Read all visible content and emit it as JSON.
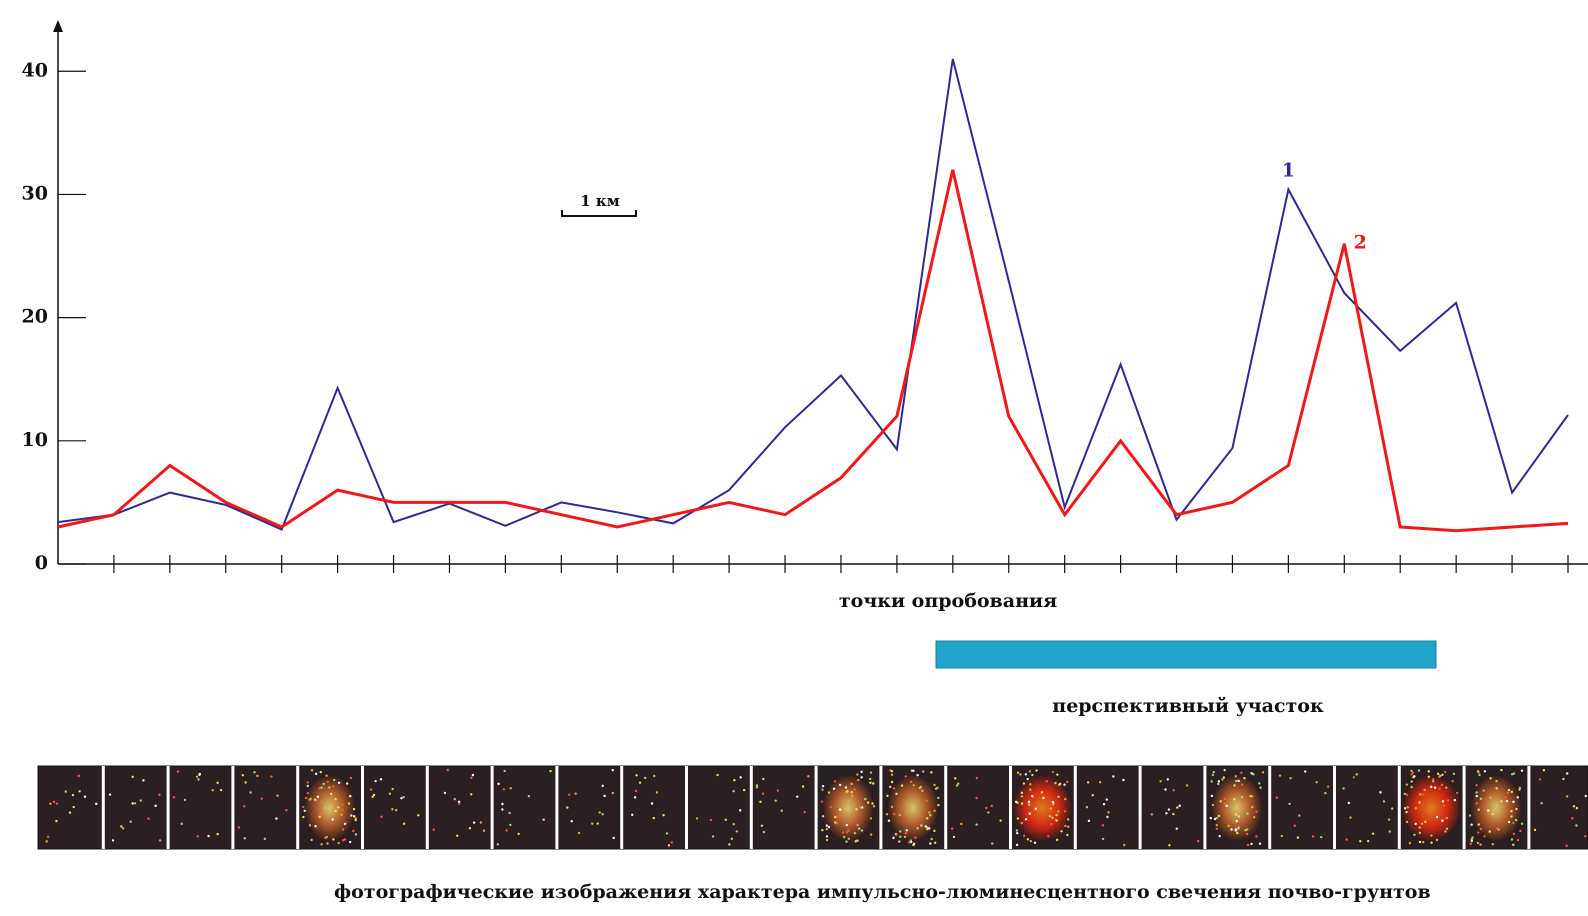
{
  "chart_data": {
    "type": "line",
    "categories": [
      null,
      null,
      null,
      null,
      null,
      null,
      null,
      null,
      null,
      null,
      null,
      null,
      null,
      null,
      null,
      null,
      null,
      null,
      null,
      null,
      null,
      null,
      null,
      null,
      null,
      null,
      null,
      null
    ],
    "series": [
      {
        "name": "1",
        "color": "#2e2a8f",
        "values": [
          3.4,
          4,
          5.8,
          4.8,
          2.8,
          14.3,
          3.4,
          4.9,
          3.1,
          5,
          4.2,
          3.3,
          6,
          11.1,
          15.3,
          9.3,
          41,
          23,
          4.6,
          16.2,
          3.6,
          9.4,
          30.4,
          22,
          17.3,
          21.2,
          5.8,
          12.1
        ]
      },
      {
        "name": "2",
        "color": "#f01818",
        "values": [
          3,
          4,
          8,
          5,
          3,
          6,
          5,
          5,
          5,
          4,
          3,
          4,
          5,
          4,
          7,
          12,
          32,
          12,
          4,
          10,
          4,
          5,
          8,
          26,
          3,
          2.7,
          3,
          3.3
        ]
      }
    ],
    "ylim": [
      0,
      44
    ],
    "yticks": [
      0,
      10,
      20,
      30,
      40
    ],
    "xlabel": "точки опробования",
    "scale_label": "1 км",
    "zone_label": "перспективный участок",
    "caption": "фотографические изображения характера импульсно-люминесцентного свечения почво-грунтов"
  }
}
